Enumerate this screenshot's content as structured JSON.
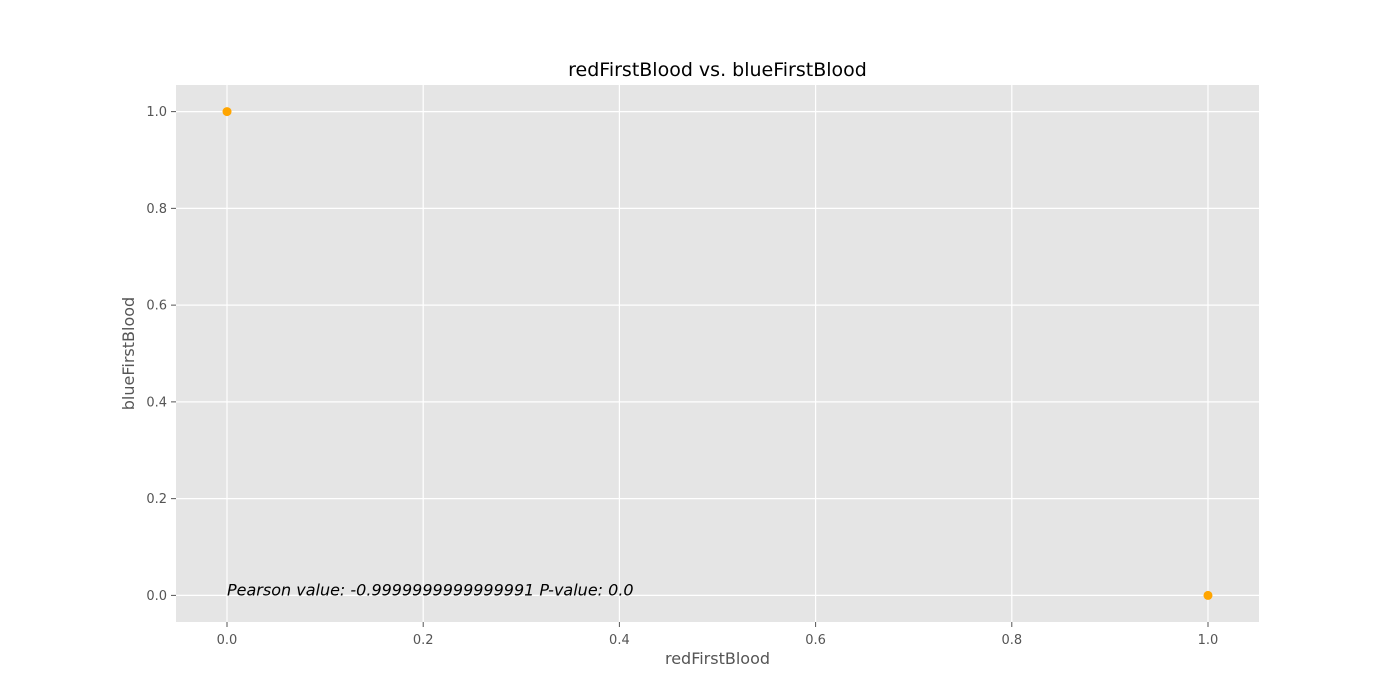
{
  "chart_data": {
    "type": "scatter",
    "title": "redFirstBlood vs. blueFirstBlood",
    "xlabel": "redFirstBlood",
    "ylabel": "blueFirstBlood",
    "xlim": [
      -0.052,
      1.052
    ],
    "ylim": [
      -0.055,
      1.055
    ],
    "x_ticks": [
      0.0,
      0.2,
      0.4,
      0.6,
      0.8,
      1.0
    ],
    "x_tick_labels": [
      "0.0",
      "0.2",
      "0.4",
      "0.6",
      "0.8",
      "1.0"
    ],
    "y_ticks": [
      0.0,
      0.2,
      0.4,
      0.6,
      0.8,
      1.0
    ],
    "y_tick_labels": [
      "0.0",
      "0.2",
      "0.4",
      "0.6",
      "0.8",
      "1.0"
    ],
    "grid": true,
    "series": [
      {
        "x": [
          0,
          1
        ],
        "y": [
          1,
          0
        ]
      }
    ],
    "annotation": {
      "text": "Pearson value: -0.9999999999999991   P-value: 0.0",
      "x": 0.0,
      "y": 0.0
    },
    "colors": {
      "plot_background": "#e5e5e5",
      "grid": "#ffffff",
      "point": "#ffa500",
      "tick_text": "#555555",
      "tick_mark": "#555555",
      "title_text": "#000000"
    }
  }
}
